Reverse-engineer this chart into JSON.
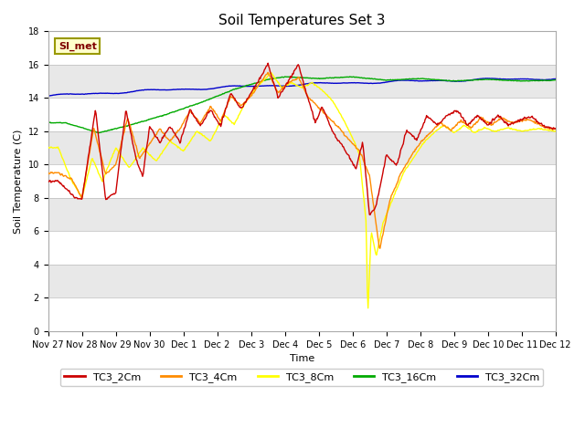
{
  "title": "Soil Temperatures Set 3",
  "xlabel": "Time",
  "ylabel": "Soil Temperature (C)",
  "ylim": [
    0,
    18
  ],
  "yticks": [
    0,
    2,
    4,
    6,
    8,
    10,
    12,
    14,
    16,
    18
  ],
  "annotation_text": "SI_met",
  "colors": {
    "TC3_2Cm": "#cc0000",
    "TC3_4Cm": "#ff8c00",
    "TC3_8Cm": "#ffff00",
    "TC3_16Cm": "#00aa00",
    "TC3_32Cm": "#0000cc"
  },
  "band_colors": [
    "#ffffff",
    "#e8e8e8"
  ],
  "line_width": 1.0,
  "xtick_labels": [
    "Nov 27",
    "Nov 28",
    "Nov 29",
    "Nov 30",
    "Dec 1",
    "Dec 2",
    "Dec 3",
    "Dec 4",
    "Dec 5",
    "Dec 6",
    "Dec 7",
    "Dec 8",
    "Dec 9",
    "Dec 10",
    "Dec 11",
    "Dec 12"
  ],
  "legend_labels": [
    "TC3_2Cm",
    "TC3_4Cm",
    "TC3_8Cm",
    "TC3_16Cm",
    "TC3_32Cm"
  ]
}
